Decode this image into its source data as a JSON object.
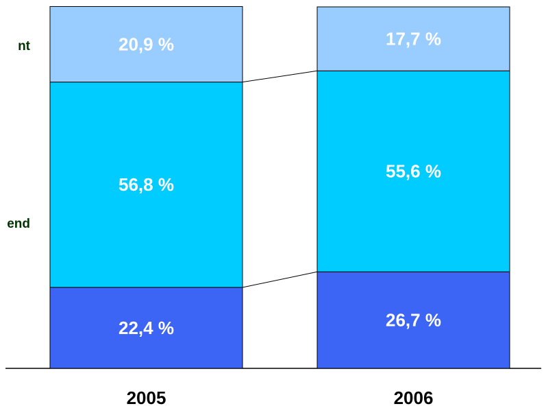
{
  "chart_data": {
    "type": "stacked_bar",
    "categories": [
      "2005",
      "2006"
    ],
    "ylim": [
      0,
      100
    ],
    "series": [
      {
        "color": "#3c64f5",
        "values": [
          22.4,
          26.7
        ],
        "value_labels": [
          "22,4 %",
          "26,7 %"
        ]
      },
      {
        "name": "end",
        "color": "#00ccff",
        "values": [
          56.8,
          55.6
        ],
        "value_labels": [
          "56,8 %",
          "55,6 %"
        ]
      },
      {
        "name": "nt",
        "color": "#99ccff",
        "values": [
          20.9,
          17.7
        ],
        "value_labels": [
          "20,9 %",
          "17,7 %"
        ]
      }
    ]
  }
}
